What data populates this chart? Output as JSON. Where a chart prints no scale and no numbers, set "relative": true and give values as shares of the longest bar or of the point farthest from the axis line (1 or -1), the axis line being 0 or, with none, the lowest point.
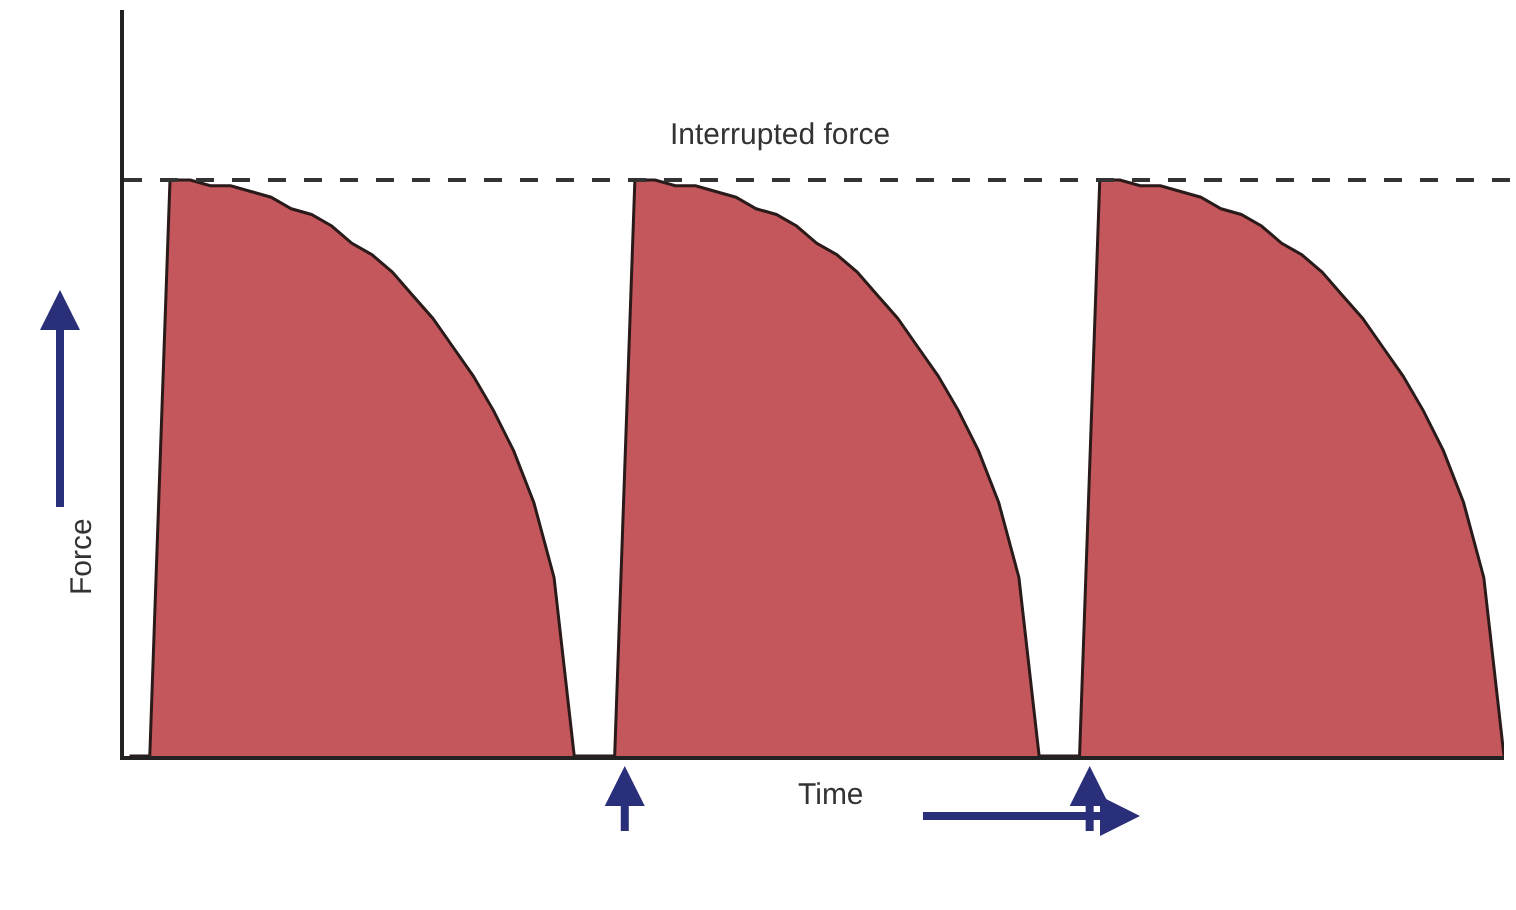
{
  "chart_data": {
    "type": "area",
    "relative": true,
    "xlabel": "Time",
    "ylabel": "Force",
    "categories": [
      null,
      null,
      null,
      null,
      null,
      null,
      null,
      null,
      null,
      null,
      null,
      null,
      null,
      null,
      null,
      null,
      null,
      null,
      null,
      null,
      null,
      null,
      null,
      null,
      null,
      null,
      null,
      null,
      null,
      null,
      null,
      null,
      null,
      null,
      null,
      null,
      null,
      null,
      null,
      null,
      null,
      null,
      null,
      null,
      null,
      null,
      null,
      null,
      null,
      null,
      null,
      null,
      null,
      null,
      null,
      null,
      null,
      null,
      null,
      null,
      null,
      null,
      null,
      null,
      null,
      null,
      null,
      null,
      null
    ],
    "series": [
      {
        "color": "#c4575c",
        "values": [
          0,
          0,
          1,
          1,
          0.99,
          0.99,
          0.98,
          0.97,
          0.95,
          0.94,
          0.92,
          0.89,
          0.87,
          0.84,
          0.8,
          0.76,
          0.71,
          0.66,
          0.6,
          0.53,
          0.44,
          0.31,
          0,
          0,
          0,
          1,
          1,
          0.99,
          0.99,
          0.98,
          0.97,
          0.95,
          0.94,
          0.92,
          0.89,
          0.87,
          0.84,
          0.8,
          0.76,
          0.71,
          0.66,
          0.6,
          0.53,
          0.44,
          0.31,
          0,
          0,
          0,
          1,
          1,
          0.99,
          0.99,
          0.98,
          0.97,
          0.95,
          0.94,
          0.92,
          0.89,
          0.87,
          0.84,
          0.8,
          0.76,
          0.71,
          0.66,
          0.6,
          0.53,
          0.44,
          0.31,
          0
        ]
      }
    ],
    "ref_lines": [
      {
        "axis": "y",
        "value": 1,
        "label": "Interrupted force",
        "color": "#333333",
        "line_style": "dashed"
      }
    ],
    "tick_labels": false
  }
}
